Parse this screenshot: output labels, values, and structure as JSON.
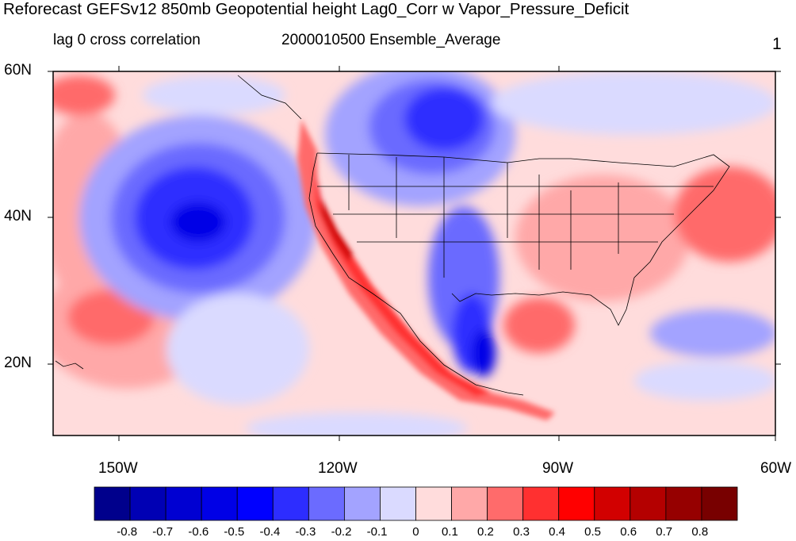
{
  "title": "Reforecast GEFSv12 850mb Geopotential height Lag0_Corr w Vapor_Pressure_Deficit",
  "subtitle_left": "lag 0 cross correlation",
  "subtitle_center": "2000010500 Ensemble_Average",
  "subtitle_right": "1",
  "lat_labels": [
    "60N",
    "40N",
    "20N"
  ],
  "lon_labels": [
    "150W",
    "120W",
    "90W",
    "60W"
  ],
  "colorbar": {
    "labels": [
      "-0.8",
      "-0.7",
      "-0.6",
      "-0.5",
      "-0.4",
      "-0.3",
      "-0.2",
      "-0.1",
      "0",
      "0.1",
      "0.2",
      "0.3",
      "0.4",
      "0.5",
      "0.6",
      "0.7",
      "0.8"
    ],
    "colors": [
      "#00008c",
      "#0000b4",
      "#0000d2",
      "#0000e6",
      "#0000ff",
      "#2d2dff",
      "#6b6bff",
      "#a3a3ff",
      "#dadaff",
      "#ffdcdc",
      "#ffa8a8",
      "#ff6b6b",
      "#ff3030",
      "#ff0000",
      "#d20000",
      "#b40000",
      "#960000",
      "#780000"
    ]
  },
  "colors": {
    "land_outline": "#000000",
    "frame": "#000000"
  }
}
